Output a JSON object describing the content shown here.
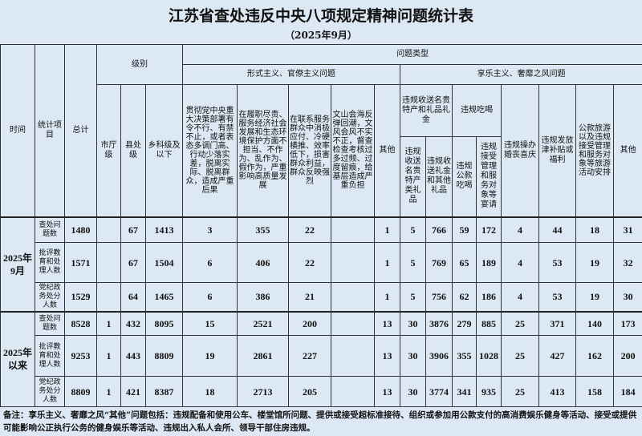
{
  "title": "江苏省查处违反中央八项规定精神问题统计表",
  "subtitle": "（2025年9月）",
  "header": {
    "time": "时间",
    "item": "统计项目",
    "total": "总计",
    "level": "级别",
    "problem_type": "问题类型",
    "formalism": "形式主义、官僚主义问题",
    "hedonism": "享乐主义、奢靡之风问题",
    "levels": [
      "市厅级",
      "县处级",
      "乡科级及以下"
    ],
    "formalism_cols": [
      "贯彻党中央重大决策部署有令不行、有禁不止，或者表态多调门高、行动少落实差，脱离实际、脱离群众，造成严重后果",
      "在履职尽责、服务经济社会发展和生态环境保护方面不担当、不作为、乱作为、假作为，严重影响高质量发展",
      "在联系服务群众中消极应付、冷硬横推、效率低下，损害群众利益，群众反映强烈",
      "文山会海反弹回潮，文风会风不实不正，督查检查考核过多过频、过度留痕，给基层造成严重负担",
      "其他"
    ],
    "gift_group": "违规收送名贵特产和礼品礼金",
    "gift_cols": [
      "违规收送名贵特产类礼品",
      "违规收送礼金和其他礼品"
    ],
    "dining_group": "违规吃喝",
    "dining_cols": [
      "违规公款吃喝",
      "违规接受管理和服务对象等宴请"
    ],
    "other_cols": [
      "违规操办婚丧喜庆",
      "违规发放津补贴或福利",
      "公款旅游以及违规接受管理和服务对象等旅游活动安排",
      "其他"
    ]
  },
  "groups": [
    {
      "time": "2025年9月",
      "rows": [
        {
          "item": "查处问题数",
          "values": [
            "1480",
            "",
            "67",
            "1413",
            "3",
            "355",
            "22",
            "",
            "1",
            "5",
            "766",
            "59",
            "172",
            "4",
            "44",
            "18",
            "31"
          ]
        },
        {
          "item": "批评教育和处理人数",
          "values": [
            "1571",
            "",
            "67",
            "1504",
            "6",
            "406",
            "22",
            "",
            "1",
            "5",
            "769",
            "65",
            "189",
            "4",
            "53",
            "19",
            "32"
          ]
        },
        {
          "item": "党纪政务处分人数",
          "values": [
            "1529",
            "",
            "64",
            "1465",
            "6",
            "386",
            "21",
            "",
            "1",
            "5",
            "756",
            "62",
            "186",
            "4",
            "53",
            "19",
            "30"
          ]
        }
      ]
    },
    {
      "time": "2025年以来",
      "rows": [
        {
          "item": "查处问题数",
          "values": [
            "8528",
            "1",
            "432",
            "8095",
            "15",
            "2521",
            "200",
            "",
            "13",
            "30",
            "3876",
            "279",
            "885",
            "25",
            "371",
            "140",
            "173"
          ]
        },
        {
          "item": "批评教育和处理人数",
          "values": [
            "9253",
            "1",
            "443",
            "8809",
            "19",
            "2861",
            "227",
            "",
            "13",
            "30",
            "3906",
            "355",
            "1028",
            "25",
            "427",
            "162",
            "200"
          ]
        },
        {
          "item": "党纪政务处分人数",
          "values": [
            "8809",
            "1",
            "421",
            "8387",
            "18",
            "2713",
            "205",
            "",
            "13",
            "30",
            "3774",
            "341",
            "935",
            "25",
            "413",
            "158",
            "184"
          ]
        }
      ]
    }
  ],
  "footnote": "备注：享乐主义、奢靡之风“其他”问题包括：违规配备和使用公车、楼堂馆所问题、提供或接受超标准接待、组织或参加用公款支付的高消费娱乐健身等活动、接受或提供可能影响公正执行公务的健身娱乐等活动、违规出入私人会所、领导干部住房违规。",
  "colors": {
    "background": "#dce8f4",
    "border": "#333333"
  }
}
